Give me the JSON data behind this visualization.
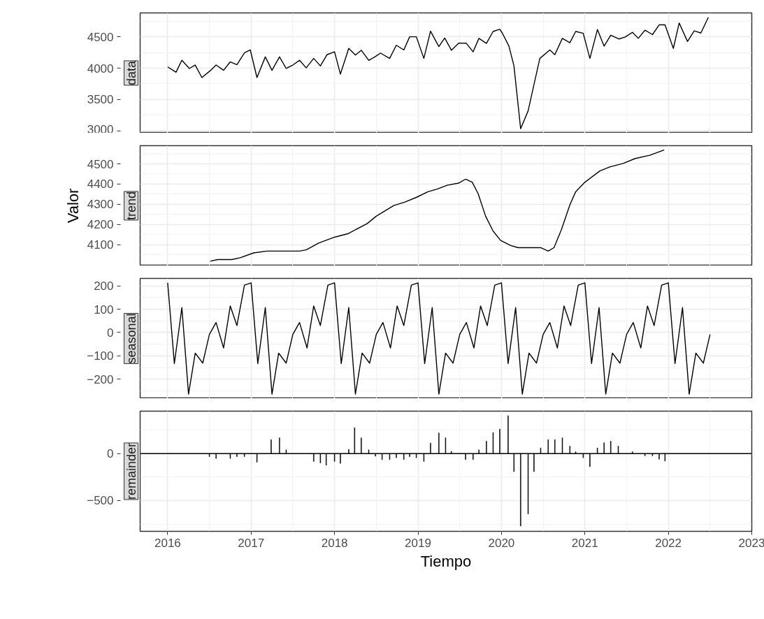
{
  "chart_data": [
    {
      "type": "line",
      "title": "data",
      "tick_labels": "y",
      "grid": true,
      "xlim": [
        2015.67,
        2023.0
      ],
      "xticks": [
        2016,
        2017,
        2018,
        2019,
        2020,
        2021,
        2022,
        2023
      ],
      "ylim": [
        2965,
        4880
      ],
      "yticks": [
        3000,
        3500,
        4000,
        4500
      ],
      "series": [
        {
          "color": "#000000",
          "x": [
            2016.0,
            2016.1,
            2016.17,
            2016.26,
            2016.33,
            2016.41,
            2016.51,
            2016.58,
            2016.67,
            2016.75,
            2016.83,
            2016.92,
            2016.99,
            2017.07,
            2017.17,
            2017.25,
            2017.34,
            2017.42,
            2017.5,
            2017.58,
            2017.66,
            2017.75,
            2017.83,
            2017.91,
            2018.0,
            2018.07,
            2018.17,
            2018.25,
            2018.32,
            2018.41,
            2018.49,
            2018.55,
            2018.66,
            2018.74,
            2018.83,
            2018.9,
            2018.98,
            2019.07,
            2019.15,
            2019.25,
            2019.32,
            2019.4,
            2019.49,
            2019.58,
            2019.66,
            2019.73,
            2019.82,
            2019.9,
            2019.98,
            2020.01,
            2020.09,
            2020.15,
            2020.23,
            2020.32,
            2020.39,
            2020.46,
            2020.58,
            2020.64,
            2020.73,
            2020.82,
            2020.89,
            2020.98,
            2021.06,
            2021.15,
            2021.23,
            2021.31,
            2021.41,
            2021.48,
            2021.57,
            2021.64,
            2021.72,
            2021.81,
            2021.89,
            2021.96,
            2022.06,
            2022.13,
            2022.23,
            2022.31,
            2022.39,
            2022.48
          ],
          "values": [
            4020,
            3935,
            4125,
            3995,
            4050,
            3850,
            3960,
            4050,
            3965,
            4100,
            4055,
            4245,
            4290,
            3850,
            4180,
            3965,
            4180,
            3995,
            4050,
            4125,
            4005,
            4155,
            4035,
            4215,
            4260,
            3905,
            4315,
            4210,
            4285,
            4125,
            4185,
            4240,
            4155,
            4365,
            4290,
            4500,
            4500,
            4155,
            4590,
            4345,
            4480,
            4285,
            4400,
            4395,
            4260,
            4475,
            4395,
            4585,
            4620,
            4560,
            4350,
            4035,
            3035,
            3320,
            3740,
            4155,
            4290,
            4215,
            4475,
            4405,
            4585,
            4555,
            4155,
            4615,
            4350,
            4525,
            4465,
            4495,
            4570,
            4475,
            4605,
            4535,
            4690,
            4690,
            4315,
            4720,
            4425,
            4595,
            4560,
            4810
          ]
        }
      ]
    },
    {
      "type": "line",
      "title": "trend",
      "ylabel": "Valor",
      "tick_labels": "y",
      "grid": true,
      "xlim": [
        2015.67,
        2023.0
      ],
      "xticks": [
        2016,
        2017,
        2018,
        2019,
        2020,
        2021,
        2022,
        2023
      ],
      "ylim": [
        3995,
        4590
      ],
      "yticks": [
        4100,
        4200,
        4300,
        4400,
        4500
      ],
      "series": [
        {
          "color": "#000000",
          "x": [
            2016.51,
            2016.6,
            2016.77,
            2016.87,
            2017.03,
            2017.19,
            2017.33,
            2017.58,
            2017.66,
            2017.81,
            2018.0,
            2018.16,
            2018.39,
            2018.5,
            2018.71,
            2018.84,
            2018.98,
            2019.12,
            2019.23,
            2019.35,
            2019.49,
            2019.57,
            2019.65,
            2019.72,
            2019.81,
            2019.9,
            2019.99,
            2020.11,
            2020.2,
            2020.47,
            2020.56,
            2020.63,
            2020.72,
            2020.82,
            2020.89,
            2021.0,
            2021.18,
            2021.3,
            2021.46,
            2021.6,
            2021.78,
            2021.95
          ],
          "values": [
            4018,
            4026,
            4026,
            4035,
            4059,
            4068,
            4068,
            4068,
            4074,
            4108,
            4137,
            4154,
            4204,
            4241,
            4294,
            4310,
            4334,
            4362,
            4375,
            4394,
            4405,
            4424,
            4409,
            4353,
            4241,
            4167,
            4121,
            4096,
            4085,
            4085,
            4068,
            4085,
            4176,
            4297,
            4362,
            4409,
            4465,
            4485,
            4502,
            4526,
            4543,
            4569
          ]
        }
      ]
    },
    {
      "type": "line",
      "title": "seasonal",
      "tick_labels": "y",
      "grid": true,
      "xlim": [
        2015.67,
        2023.0
      ],
      "xticks": [
        2016,
        2017,
        2018,
        2019,
        2020,
        2021,
        2022,
        2023
      ],
      "ylim": [
        -283,
        232
      ],
      "yticks": [
        -200,
        -100,
        0,
        100,
        200
      ],
      "series": [
        {
          "color": "#000000",
          "x": [
            2016.0,
            2016.08,
            2016.17,
            2016.25,
            2016.33,
            2016.42,
            2016.5,
            2016.58,
            2016.67,
            2016.75,
            2016.83,
            2016.92,
            2017.0,
            2017.08,
            2017.17,
            2017.25,
            2017.33,
            2017.42,
            2017.5,
            2017.58,
            2017.67,
            2017.75,
            2017.83,
            2017.92,
            2018.0,
            2018.08,
            2018.17,
            2018.25,
            2018.33,
            2018.42,
            2018.5,
            2018.58,
            2018.67,
            2018.75,
            2018.83,
            2018.92,
            2019.0,
            2019.08,
            2019.17,
            2019.25,
            2019.33,
            2019.42,
            2019.5,
            2019.58,
            2019.67,
            2019.75,
            2019.83,
            2019.92,
            2020.0,
            2020.08,
            2020.17,
            2020.25,
            2020.33,
            2020.42,
            2020.5,
            2020.58,
            2020.67,
            2020.75,
            2020.83,
            2020.92,
            2021.0,
            2021.08,
            2021.17,
            2021.25,
            2021.33,
            2021.42,
            2021.5,
            2021.58,
            2021.67,
            2021.75,
            2021.83,
            2021.92,
            2022.0,
            2022.08,
            2022.17,
            2022.25,
            2022.33,
            2022.42,
            2022.5
          ],
          "values": [
            213,
            -133,
            107,
            -264,
            -88,
            -131,
            -8,
            43,
            -66,
            114,
            30,
            203,
            213,
            -133,
            107,
            -264,
            -88,
            -131,
            -8,
            43,
            -66,
            114,
            30,
            203,
            213,
            -133,
            107,
            -264,
            -88,
            -131,
            -8,
            43,
            -66,
            114,
            30,
            203,
            213,
            -133,
            107,
            -264,
            -88,
            -131,
            -8,
            43,
            -66,
            114,
            30,
            203,
            213,
            -133,
            107,
            -264,
            -88,
            -131,
            -8,
            43,
            -66,
            114,
            30,
            203,
            213,
            -133,
            107,
            -264,
            -88,
            -131,
            -8,
            43,
            -66,
            114,
            30,
            203,
            213,
            -133,
            107,
            -264,
            -88,
            -131,
            -8
          ]
        }
      ]
    },
    {
      "type": "bar",
      "title": "remainder",
      "xlabel": "Tiempo",
      "grid": true,
      "xlim": [
        2015.67,
        2023.0
      ],
      "xticks": [
        2016,
        2017,
        2018,
        2019,
        2020,
        2021,
        2022,
        2023
      ],
      "ylim": [
        -828,
        452
      ],
      "yticks": [
        -500,
        0
      ],
      "ref_lines": [
        {
          "axis": "y",
          "value": 0,
          "color": "#000000"
        }
      ],
      "series": [
        {
          "color": "#000000",
          "x": [
            2016.5,
            2016.58,
            2016.75,
            2016.83,
            2016.92,
            2017.07,
            2017.24,
            2017.34,
            2017.42,
            2017.75,
            2017.83,
            2017.9,
            2018.0,
            2018.07,
            2018.17,
            2018.24,
            2018.32,
            2018.41,
            2018.49,
            2018.57,
            2018.66,
            2018.74,
            2018.83,
            2018.9,
            2018.98,
            2019.07,
            2019.15,
            2019.25,
            2019.33,
            2019.4,
            2019.57,
            2019.66,
            2019.73,
            2019.82,
            2019.9,
            2019.98,
            2020.08,
            2020.15,
            2020.23,
            2020.32,
            2020.39,
            2020.47,
            2020.56,
            2020.64,
            2020.73,
            2020.82,
            2020.89,
            2020.98,
            2021.06,
            2021.15,
            2021.23,
            2021.31,
            2021.4,
            2021.57,
            2021.72,
            2021.81,
            2021.89,
            2021.96
          ],
          "values": [
            -32,
            -52,
            -52,
            -32,
            -32,
            -92,
            148,
            168,
            40,
            -84,
            -100,
            -124,
            -84,
            -104,
            44,
            276,
            168,
            40,
            -28,
            -64,
            -64,
            -44,
            -64,
            -32,
            -44,
            -84,
            112,
            220,
            168,
            24,
            -64,
            -64,
            40,
            132,
            224,
            260,
            404,
            -192,
            -772,
            -644,
            -192,
            60,
            148,
            148,
            168,
            80,
            20,
            -44,
            -140,
            60,
            116,
            132,
            80,
            20,
            -24,
            -24,
            -60,
            -80
          ]
        }
      ]
    }
  ]
}
